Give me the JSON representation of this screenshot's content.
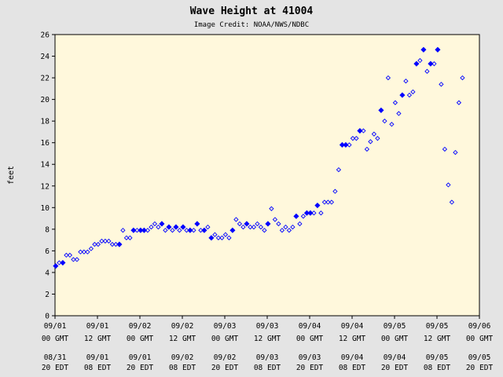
{
  "chart_data": {
    "type": "scatter",
    "title": "Wave Height at 41004",
    "subtitle": "Image Credit: NOAA/NWS/NDBC",
    "xlabel": "",
    "ylabel": "feet",
    "ylim": [
      0,
      26
    ],
    "yticks": [
      0,
      2,
      4,
      6,
      8,
      10,
      12,
      14,
      16,
      18,
      20,
      22,
      24,
      26
    ],
    "xlim": [
      0,
      120
    ],
    "x_unit": "hours since 09/01 00 GMT",
    "x_ticks": [
      {
        "gmt_date": "09/01",
        "gmt_time": "00 GMT",
        "edt_date": "08/31",
        "edt_time": "20 EDT"
      },
      {
        "gmt_date": "09/01",
        "gmt_time": "12 GMT",
        "edt_date": "09/01",
        "edt_time": "08 EDT"
      },
      {
        "gmt_date": "09/02",
        "gmt_time": "00 GMT",
        "edt_date": "09/01",
        "edt_time": "20 EDT"
      },
      {
        "gmt_date": "09/02",
        "gmt_time": "12 GMT",
        "edt_date": "09/02",
        "edt_time": "08 EDT"
      },
      {
        "gmt_date": "09/03",
        "gmt_time": "00 GMT",
        "edt_date": "09/02",
        "edt_time": "20 EDT"
      },
      {
        "gmt_date": "09/03",
        "gmt_time": "12 GMT",
        "edt_date": "09/03",
        "edt_time": "08 EDT"
      },
      {
        "gmt_date": "09/04",
        "gmt_time": "00 GMT",
        "edt_date": "09/03",
        "edt_time": "20 EDT"
      },
      {
        "gmt_date": "09/04",
        "gmt_time": "12 GMT",
        "edt_date": "09/04",
        "edt_time": "08 EDT"
      },
      {
        "gmt_date": "09/05",
        "gmt_time": "00 GMT",
        "edt_date": "09/04",
        "edt_time": "20 EDT"
      },
      {
        "gmt_date": "09/05",
        "gmt_time": "12 GMT",
        "edt_date": "09/05",
        "edt_time": "08 EDT"
      },
      {
        "gmt_date": "09/06",
        "gmt_time": "00 GMT",
        "edt_date": "09/05",
        "edt_time": "20 EDT"
      }
    ],
    "grid": false,
    "legend": "none",
    "colors": {
      "background": "#e4e4e4",
      "plot_bg": "#fff8dc",
      "marker": "#0000ff",
      "axis": "#000000"
    },
    "series": [
      {
        "values": [
          [
            0.2,
            4.6,
            "f"
          ],
          [
            1.2,
            4.9,
            "o"
          ],
          [
            2.2,
            4.9,
            "f"
          ],
          [
            3.2,
            5.6,
            "o"
          ],
          [
            4.2,
            5.6,
            "o"
          ],
          [
            5.2,
            5.2,
            "o"
          ],
          [
            6.2,
            5.2,
            "o"
          ],
          [
            7.2,
            5.9,
            "o"
          ],
          [
            8.2,
            5.9,
            "o"
          ],
          [
            9.2,
            5.9,
            "o"
          ],
          [
            10.2,
            6.2,
            "o"
          ],
          [
            11.2,
            6.6,
            "o"
          ],
          [
            12.2,
            6.6,
            "o"
          ],
          [
            13.2,
            6.9,
            "o"
          ],
          [
            14.2,
            6.9,
            "o"
          ],
          [
            15.2,
            6.9,
            "o"
          ],
          [
            16.2,
            6.6,
            "o"
          ],
          [
            17.2,
            6.6,
            "o"
          ],
          [
            18.2,
            6.6,
            "f"
          ],
          [
            19.2,
            7.9,
            "o"
          ],
          [
            20.2,
            7.2,
            "o"
          ],
          [
            21.2,
            7.2,
            "o"
          ],
          [
            22.2,
            7.9,
            "f"
          ],
          [
            23.2,
            7.9,
            "o"
          ],
          [
            24.2,
            7.9,
            "f"
          ],
          [
            25.2,
            7.9,
            "f"
          ],
          [
            26.2,
            7.9,
            "o"
          ],
          [
            27.2,
            8.2,
            "o"
          ],
          [
            28.2,
            8.5,
            "o"
          ],
          [
            29.2,
            8.2,
            "o"
          ],
          [
            30.2,
            8.5,
            "f"
          ],
          [
            31.2,
            7.9,
            "o"
          ],
          [
            32.2,
            8.2,
            "f"
          ],
          [
            33.2,
            7.9,
            "o"
          ],
          [
            34.2,
            8.2,
            "f"
          ],
          [
            35.2,
            7.9,
            "o"
          ],
          [
            36.2,
            8.2,
            "f"
          ],
          [
            37.2,
            7.9,
            "o"
          ],
          [
            38.2,
            7.9,
            "f"
          ],
          [
            39.2,
            7.9,
            "o"
          ],
          [
            40.2,
            8.5,
            "f"
          ],
          [
            41.2,
            7.9,
            "o"
          ],
          [
            42.2,
            7.9,
            "f"
          ],
          [
            43.2,
            8.2,
            "o"
          ],
          [
            44.2,
            7.2,
            "f"
          ],
          [
            45.2,
            7.5,
            "o"
          ],
          [
            46.2,
            7.2,
            "o"
          ],
          [
            47.2,
            7.2,
            "o"
          ],
          [
            48.2,
            7.5,
            "o"
          ],
          [
            49.2,
            7.2,
            "o"
          ],
          [
            50.2,
            7.9,
            "f"
          ],
          [
            51.2,
            8.9,
            "o"
          ],
          [
            52.2,
            8.5,
            "o"
          ],
          [
            53.2,
            8.2,
            "o"
          ],
          [
            54.2,
            8.5,
            "f"
          ],
          [
            55.2,
            8.2,
            "o"
          ],
          [
            56.2,
            8.2,
            "o"
          ],
          [
            57.2,
            8.5,
            "o"
          ],
          [
            58.2,
            8.2,
            "o"
          ],
          [
            59.2,
            7.9,
            "o"
          ],
          [
            60.2,
            8.5,
            "f"
          ],
          [
            61.2,
            9.9,
            "o"
          ],
          [
            62.2,
            8.9,
            "o"
          ],
          [
            63.2,
            8.5,
            "o"
          ],
          [
            64.2,
            7.9,
            "o"
          ],
          [
            65.2,
            8.2,
            "o"
          ],
          [
            66.2,
            7.9,
            "o"
          ],
          [
            67.2,
            8.2,
            "o"
          ],
          [
            68.2,
            9.2,
            "f"
          ],
          [
            69.2,
            8.5,
            "o"
          ],
          [
            70.2,
            9.2,
            "o"
          ],
          [
            71.2,
            9.5,
            "f"
          ],
          [
            72.2,
            9.5,
            "f"
          ],
          [
            73.2,
            9.5,
            "o"
          ],
          [
            74.2,
            10.2,
            "f"
          ],
          [
            75.2,
            9.5,
            "o"
          ],
          [
            76.2,
            10.5,
            "o"
          ],
          [
            77.2,
            10.5,
            "o"
          ],
          [
            78.2,
            10.5,
            "o"
          ],
          [
            79.2,
            11.5,
            "o"
          ],
          [
            80.2,
            13.5,
            "o"
          ],
          [
            81.2,
            15.8,
            "f"
          ],
          [
            82.2,
            15.8,
            "f"
          ],
          [
            83.2,
            15.8,
            "o"
          ],
          [
            84.2,
            16.4,
            "o"
          ],
          [
            85.2,
            16.4,
            "o"
          ],
          [
            86.2,
            17.1,
            "f"
          ],
          [
            87.2,
            17.1,
            "o"
          ],
          [
            88.2,
            15.4,
            "o"
          ],
          [
            89.2,
            16.1,
            "o"
          ],
          [
            90.2,
            16.8,
            "o"
          ],
          [
            91.2,
            16.4,
            "o"
          ],
          [
            92.2,
            19.0,
            "f"
          ],
          [
            93.2,
            18.0,
            "o"
          ],
          [
            94.2,
            22.0,
            "o"
          ],
          [
            95.2,
            17.7,
            "o"
          ],
          [
            96.2,
            19.7,
            "o"
          ],
          [
            97.2,
            18.7,
            "o"
          ],
          [
            98.2,
            20.4,
            "f"
          ],
          [
            99.2,
            21.7,
            "o"
          ],
          [
            100.2,
            20.4,
            "o"
          ],
          [
            101.2,
            20.7,
            "o"
          ],
          [
            102.2,
            23.3,
            "f"
          ],
          [
            103.2,
            23.6,
            "o"
          ],
          [
            104.2,
            24.6,
            "f"
          ],
          [
            105.2,
            22.6,
            "o"
          ],
          [
            106.2,
            23.3,
            "f"
          ],
          [
            107.2,
            23.3,
            "o"
          ],
          [
            108.2,
            24.6,
            "f"
          ],
          [
            109.2,
            21.4,
            "o"
          ],
          [
            110.2,
            15.4,
            "o"
          ],
          [
            111.2,
            12.1,
            "o"
          ],
          [
            112.2,
            10.5,
            "o"
          ],
          [
            113.2,
            15.1,
            "o"
          ],
          [
            114.2,
            19.7,
            "o"
          ],
          [
            115.2,
            22.0,
            "o"
          ]
        ]
      }
    ]
  }
}
